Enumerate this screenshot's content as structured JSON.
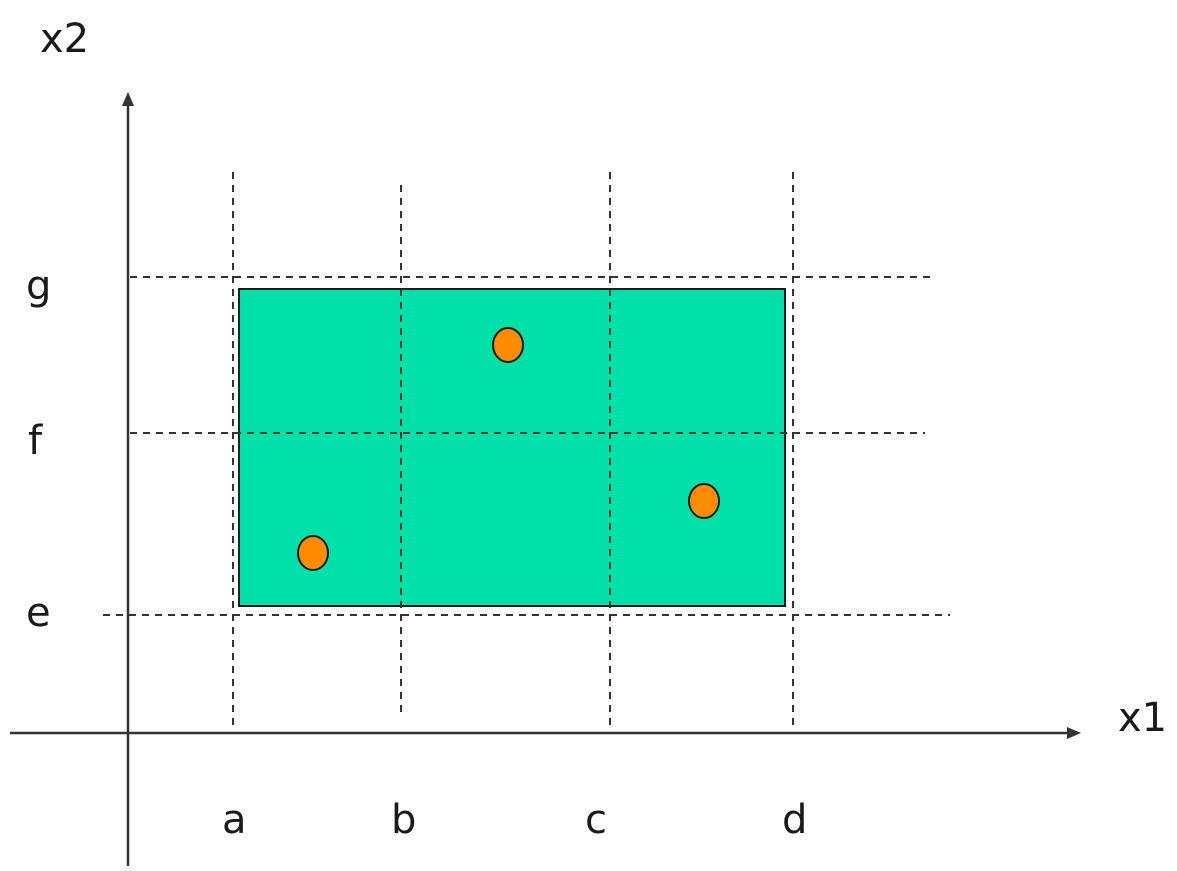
{
  "axes": {
    "x_label": "x1",
    "y_label": "x2",
    "x_ticks": [
      "a",
      "b",
      "c",
      "d"
    ],
    "y_ticks": [
      "e",
      "f",
      "g"
    ]
  },
  "region": {
    "fill_color": "#00e0a8",
    "x_range": [
      "a",
      "d"
    ],
    "y_range": [
      "e",
      "g"
    ]
  },
  "points": {
    "color": "#ff8c00",
    "count": 3
  },
  "colors": {
    "axis": "#333333",
    "grid": "#333333",
    "outline": "#1a1a1a"
  }
}
